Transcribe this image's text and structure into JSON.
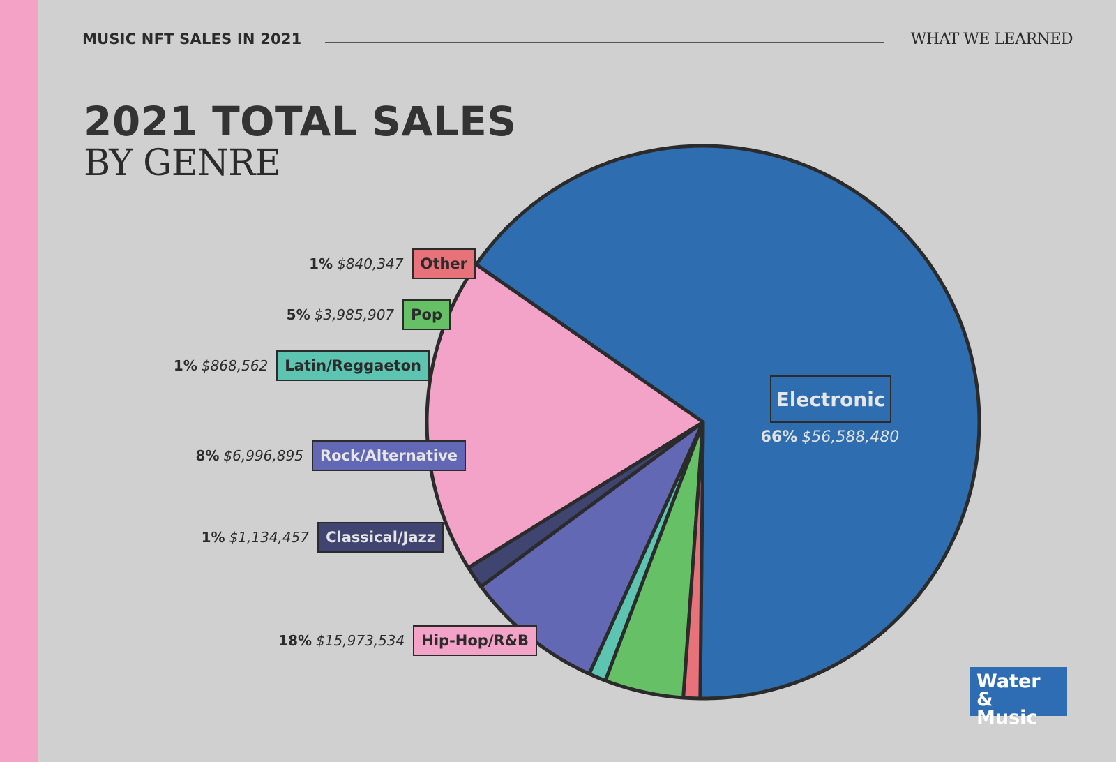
{
  "header": {
    "left": "MUSIC NFT SALES IN 2021",
    "right": "WHAT WE LEARNED"
  },
  "title": {
    "main": "2021 TOTAL SALES",
    "sub": "BY GENRE"
  },
  "logo": {
    "line1": "Water",
    "line2": "& Music"
  },
  "colors": {
    "background": "#d0d0d0",
    "stripe": "#f4a3c6",
    "outline": "#2b2b2b"
  },
  "chart_data": {
    "type": "pie",
    "title": "2021 TOTAL SALES BY GENRE",
    "slices": [
      {
        "name": "Electronic",
        "percent_label": "66%",
        "value_label": "$56,588,480",
        "value": 56588480,
        "color": "#2f6db1"
      },
      {
        "name": "Hip-Hop/R&B",
        "percent_label": "18%",
        "value_label": "$15,973,534",
        "value": 15973534,
        "color": "#f4a3c8"
      },
      {
        "name": "Classical/Jazz",
        "percent_label": "1%",
        "value_label": "$1,134,457",
        "value": 1134457,
        "color": "#3f4470"
      },
      {
        "name": "Rock/Alternative",
        "percent_label": "8%",
        "value_label": "$6,996,895",
        "value": 6996895,
        "color": "#6268b4"
      },
      {
        "name": "Latin/Reggaeton",
        "percent_label": "1%",
        "value_label": "$868,562",
        "value": 868562,
        "color": "#5cc4b0"
      },
      {
        "name": "Pop",
        "percent_label": "5%",
        "value_label": "$3,985,907",
        "value": 3985907,
        "color": "#66c066"
      },
      {
        "name": "Other",
        "percent_label": "1%",
        "value_label": "$840,347",
        "value": 840347,
        "color": "#e8727a"
      }
    ]
  }
}
